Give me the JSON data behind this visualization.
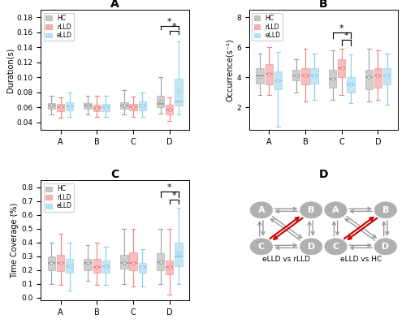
{
  "panel_A": {
    "title": "A",
    "ylabel": "Duration(s)",
    "ylim": [
      0.03,
      0.19
    ],
    "yticks": [
      0.04,
      0.06,
      0.08,
      0.1,
      0.12,
      0.14,
      0.16,
      0.18
    ],
    "categories": [
      "A",
      "B",
      "C",
      "D"
    ],
    "HC": {
      "A": {
        "whislo": 0.05,
        "q1": 0.058,
        "med": 0.062,
        "q3": 0.066,
        "whishi": 0.075
      },
      "B": {
        "whislo": 0.051,
        "q1": 0.058,
        "med": 0.062,
        "q3": 0.066,
        "whishi": 0.075
      },
      "C": {
        "whislo": 0.05,
        "q1": 0.058,
        "med": 0.062,
        "q3": 0.067,
        "whishi": 0.083
      },
      "D": {
        "whislo": 0.052,
        "q1": 0.06,
        "med": 0.065,
        "q3": 0.075,
        "whishi": 0.1
      }
    },
    "rLLD": {
      "A": {
        "whislo": 0.046,
        "q1": 0.055,
        "med": 0.06,
        "q3": 0.065,
        "whishi": 0.073
      },
      "B": {
        "whislo": 0.047,
        "q1": 0.055,
        "med": 0.059,
        "q3": 0.064,
        "whishi": 0.075
      },
      "C": {
        "whislo": 0.047,
        "q1": 0.056,
        "med": 0.06,
        "q3": 0.065,
        "whishi": 0.074
      },
      "D": {
        "whislo": 0.042,
        "q1": 0.05,
        "med": 0.057,
        "q3": 0.063,
        "whishi": 0.073
      }
    },
    "eLLD": {
      "A": {
        "whislo": 0.047,
        "q1": 0.056,
        "med": 0.061,
        "q3": 0.067,
        "whishi": 0.08
      },
      "B": {
        "whislo": 0.047,
        "q1": 0.055,
        "med": 0.06,
        "q3": 0.065,
        "whishi": 0.075
      },
      "C": {
        "whislo": 0.047,
        "q1": 0.056,
        "med": 0.062,
        "q3": 0.068,
        "whishi": 0.08
      },
      "D": {
        "whislo": 0.05,
        "q1": 0.062,
        "med": 0.068,
        "q3": 0.098,
        "whishi": 0.148
      }
    },
    "means": {
      "HC": {
        "A": 0.062,
        "B": 0.062,
        "C": 0.062,
        "D": 0.068
      },
      "rLLD": {
        "A": 0.06,
        "B": 0.059,
        "C": 0.06,
        "D": 0.057
      },
      "eLLD": {
        "A": 0.061,
        "B": 0.06,
        "C": 0.062,
        "D": 0.082
      }
    }
  },
  "panel_B": {
    "title": "B",
    "ylabel": "Occurrence(s⁻¹)",
    "ylim": [
      0.5,
      8.5
    ],
    "yticks": [
      2,
      4,
      6,
      8
    ],
    "categories": [
      "A",
      "B",
      "C",
      "D"
    ],
    "HC": {
      "A": {
        "whislo": 2.8,
        "q1": 3.6,
        "med": 4.1,
        "q3": 4.6,
        "whishi": 5.6
      },
      "B": {
        "whislo": 3.0,
        "q1": 3.8,
        "med": 4.1,
        "q3": 4.5,
        "whishi": 5.2
      },
      "C": {
        "whislo": 2.5,
        "q1": 3.3,
        "med": 3.9,
        "q3": 4.5,
        "whishi": 5.8
      },
      "D": {
        "whislo": 2.4,
        "q1": 3.2,
        "med": 4.0,
        "q3": 4.5,
        "whishi": 5.9
      }
    },
    "rLLD": {
      "A": {
        "whislo": 2.8,
        "q1": 3.5,
        "med": 4.2,
        "q3": 4.9,
        "whishi": 6.0
      },
      "B": {
        "whislo": 2.4,
        "q1": 3.5,
        "med": 4.1,
        "q3": 4.6,
        "whishi": 5.9
      },
      "C": {
        "whislo": 2.8,
        "q1": 4.0,
        "med": 4.6,
        "q3": 5.2,
        "whishi": 5.9
      },
      "D": {
        "whislo": 2.5,
        "q1": 3.3,
        "med": 4.1,
        "q3": 4.6,
        "whishi": 5.8
      }
    },
    "eLLD": {
      "A": {
        "whislo": 0.7,
        "q1": 3.2,
        "med": 3.8,
        "q3": 4.4,
        "whishi": 5.7
      },
      "B": {
        "whislo": 2.5,
        "q1": 3.6,
        "med": 4.1,
        "q3": 4.6,
        "whishi": 5.6
      },
      "C": {
        "whislo": 2.3,
        "q1": 3.0,
        "med": 3.5,
        "q3": 4.0,
        "whishi": 5.5
      },
      "D": {
        "whislo": 2.2,
        "q1": 3.5,
        "med": 4.1,
        "q3": 4.6,
        "whishi": 5.6
      }
    },
    "means": {
      "HC": {
        "A": 4.0,
        "B": 4.1,
        "C": 3.9,
        "D": 4.0
      },
      "rLLD": {
        "A": 4.2,
        "B": 4.1,
        "C": 4.6,
        "D": 4.1
      },
      "eLLD": {
        "A": 3.8,
        "B": 4.1,
        "C": 3.5,
        "D": 4.1
      }
    }
  },
  "panel_C": {
    "title": "C",
    "ylabel": "Time Coverage (%)",
    "ylim": [
      -0.02,
      0.85
    ],
    "yticks": [
      0.0,
      0.1,
      0.2,
      0.3,
      0.4,
      0.5,
      0.6,
      0.7,
      0.8
    ],
    "categories": [
      "A",
      "B",
      "C",
      "D"
    ],
    "HC": {
      "A": {
        "whislo": 0.1,
        "q1": 0.2,
        "med": 0.25,
        "q3": 0.3,
        "whishi": 0.4
      },
      "B": {
        "whislo": 0.12,
        "q1": 0.2,
        "med": 0.25,
        "q3": 0.28,
        "whishi": 0.38
      },
      "C": {
        "whislo": 0.1,
        "q1": 0.21,
        "med": 0.25,
        "q3": 0.31,
        "whishi": 0.5
      },
      "D": {
        "whislo": 0.1,
        "q1": 0.2,
        "med": 0.26,
        "q3": 0.32,
        "whishi": 0.5
      }
    },
    "rLLD": {
      "A": {
        "whislo": 0.09,
        "q1": 0.19,
        "med": 0.25,
        "q3": 0.31,
        "whishi": 0.46
      },
      "B": {
        "whislo": 0.09,
        "q1": 0.18,
        "med": 0.22,
        "q3": 0.28,
        "whishi": 0.4
      },
      "C": {
        "whislo": 0.08,
        "q1": 0.2,
        "med": 0.25,
        "q3": 0.33,
        "whishi": 0.5
      },
      "D": {
        "whislo": 0.02,
        "q1": 0.17,
        "med": 0.22,
        "q3": 0.27,
        "whishi": 0.5
      }
    },
    "eLLD": {
      "A": {
        "whislo": 0.05,
        "q1": 0.18,
        "med": 0.23,
        "q3": 0.28,
        "whishi": 0.4
      },
      "B": {
        "whislo": 0.09,
        "q1": 0.18,
        "med": 0.23,
        "q3": 0.27,
        "whishi": 0.37
      },
      "C": {
        "whislo": 0.08,
        "q1": 0.18,
        "med": 0.22,
        "q3": 0.25,
        "whishi": 0.35
      },
      "D": {
        "whislo": 0.1,
        "q1": 0.23,
        "med": 0.3,
        "q3": 0.4,
        "whishi": 0.65
      }
    },
    "means": {
      "HC": {
        "A": 0.25,
        "B": 0.25,
        "C": 0.25,
        "D": 0.26
      },
      "rLLD": {
        "A": 0.25,
        "B": 0.22,
        "C": 0.25,
        "D": 0.22
      },
      "eLLD": {
        "A": 0.23,
        "B": 0.23,
        "C": 0.22,
        "D": 0.32
      }
    }
  },
  "colors": {
    "HC": "#a0a0a0",
    "rLLD": "#f08080",
    "eLLD": "#87ceeb"
  },
  "node_color": "#b0b0b0",
  "arrow_color_sig": "#cc0000",
  "arrow_color_nonsig": "#999999"
}
